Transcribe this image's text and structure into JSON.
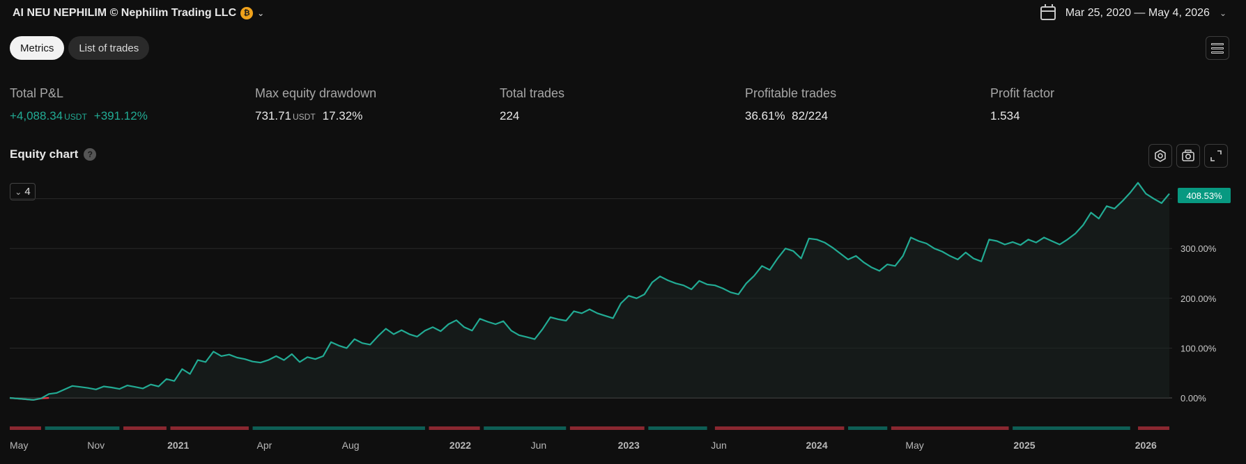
{
  "header": {
    "strategy_title": "AI NEU NEPHILIM © Nephilim Trading LLC",
    "coin_symbol": "₿",
    "date_range": "Mar 25, 2020 — May 4, 2026"
  },
  "tabs": [
    {
      "label": "Metrics",
      "active": true
    },
    {
      "label": "List of trades",
      "active": false
    }
  ],
  "metrics": {
    "total_pnl": {
      "label": "Total P&L",
      "value": "+4,088.34",
      "unit": "USDT",
      "percent": "+391.12%"
    },
    "max_drawdown": {
      "label": "Max equity drawdown",
      "value": "731.71",
      "unit": "USDT",
      "percent": "17.32%"
    },
    "total_trades": {
      "label": "Total trades",
      "value": "224"
    },
    "profitable_trades": {
      "label": "Profitable trades",
      "percent": "36.61%",
      "ratio": "82/224"
    },
    "profit_factor": {
      "label": "Profit factor",
      "value": "1.534"
    }
  },
  "equity_chart": {
    "title": "Equity chart",
    "help_symbol": "?",
    "collapse_count": "4",
    "last_value_label": "408.53%"
  },
  "colors": {
    "accent_green": "#22ab94",
    "label_green": "#089981",
    "loss_red": "#f23645",
    "bar_red": "#8a2830",
    "bar_green": "#0e5e55"
  },
  "icons": [
    "calendar-icon",
    "chevron-down-icon",
    "menu-icon",
    "settings-icon",
    "camera-icon",
    "expand-icon",
    "help-icon"
  ],
  "chart_data": {
    "type": "line",
    "ylim": [
      -5,
      430
    ],
    "y_ticks": [
      0,
      100,
      200,
      300
    ],
    "y_tick_labels": [
      "0.00%",
      "100.00%",
      "200.00%",
      "300.00%"
    ],
    "x_tick_labels": [
      "May",
      "Nov",
      "2021",
      "Apr",
      "Aug",
      "2022",
      "Jun",
      "2023",
      "Jun",
      "2024",
      "May",
      "2025",
      "2026"
    ],
    "x_tick_positions": [
      2,
      22,
      43,
      65,
      87,
      115,
      135,
      158,
      181,
      206,
      231,
      259,
      290
    ],
    "x": [
      0,
      3,
      6,
      8,
      10,
      12,
      14,
      16,
      18,
      20,
      22,
      24,
      26,
      28,
      30,
      32,
      34,
      36,
      38,
      40,
      42,
      44,
      46,
      48,
      50,
      52,
      54,
      56,
      58,
      60,
      62,
      64,
      66,
      68,
      70,
      72,
      74,
      76,
      78,
      80,
      82,
      84,
      86,
      88,
      90,
      92,
      94,
      96,
      98,
      100,
      102,
      104,
      106,
      108,
      110,
      112,
      114,
      116,
      118,
      120,
      122,
      124,
      126,
      128,
      130,
      132,
      134,
      136,
      138,
      140,
      142,
      144,
      146,
      148,
      150,
      152,
      154,
      156,
      158,
      160,
      162,
      164,
      166,
      168,
      170,
      172,
      174,
      176,
      178,
      180,
      182,
      184,
      186,
      188,
      190,
      192,
      194,
      196,
      198,
      200,
      202,
      204,
      206,
      208,
      210,
      212,
      214,
      216,
      218,
      220,
      222,
      224,
      226,
      228,
      230,
      232,
      234,
      236,
      238,
      240,
      242,
      244,
      246,
      248,
      250,
      252,
      254,
      256,
      258,
      260,
      262,
      264,
      266,
      268,
      270,
      272,
      274,
      276,
      278,
      280,
      282,
      284,
      286,
      288,
      290,
      292,
      294,
      296
    ],
    "y": [
      0,
      -2,
      -4,
      -1,
      8,
      10,
      17,
      24,
      22,
      20,
      17,
      23,
      21,
      18,
      25,
      22,
      19,
      27,
      23,
      38,
      34,
      58,
      48,
      76,
      72,
      93,
      84,
      87,
      81,
      78,
      73,
      71,
      76,
      84,
      76,
      88,
      72,
      82,
      78,
      84,
      112,
      105,
      100,
      118,
      110,
      107,
      124,
      139,
      128,
      136,
      128,
      123,
      135,
      142,
      134,
      148,
      156,
      142,
      135,
      159,
      153,
      148,
      154,
      135,
      126,
      122,
      118,
      138,
      162,
      158,
      155,
      174,
      170,
      178,
      170,
      165,
      160,
      190,
      205,
      200,
      208,
      232,
      244,
      236,
      230,
      226,
      218,
      235,
      228,
      226,
      220,
      212,
      208,
      230,
      245,
      265,
      257,
      280,
      300,
      295,
      280,
      320,
      318,
      312,
      302,
      290,
      278,
      285,
      272,
      262,
      255,
      268,
      265,
      285,
      322,
      315,
      310,
      300,
      294,
      285,
      278,
      292,
      280,
      274,
      318,
      315,
      308,
      313,
      307,
      318,
      312,
      322,
      315,
      308,
      318,
      330,
      347,
      372,
      360,
      385,
      380,
      395,
      412,
      432,
      410,
      400,
      391,
      410
    ],
    "trade_bars": [
      {
        "from": 0,
        "to": 8,
        "color": "red"
      },
      {
        "from": 9,
        "to": 28,
        "color": "green"
      },
      {
        "from": 29,
        "to": 40,
        "color": "red"
      },
      {
        "from": 41,
        "to": 61,
        "color": "red"
      },
      {
        "from": 62,
        "to": 106,
        "color": "green"
      },
      {
        "from": 107,
        "to": 120,
        "color": "red"
      },
      {
        "from": 121,
        "to": 142,
        "color": "green"
      },
      {
        "from": 143,
        "to": 162,
        "color": "red"
      },
      {
        "from": 163,
        "to": 178,
        "color": "green"
      },
      {
        "from": 180,
        "to": 213,
        "color": "red"
      },
      {
        "from": 214,
        "to": 224,
        "color": "green"
      },
      {
        "from": 225,
        "to": 255,
        "color": "red"
      },
      {
        "from": 256,
        "to": 286,
        "color": "green"
      },
      {
        "from": 288,
        "to": 296,
        "color": "red"
      }
    ]
  }
}
